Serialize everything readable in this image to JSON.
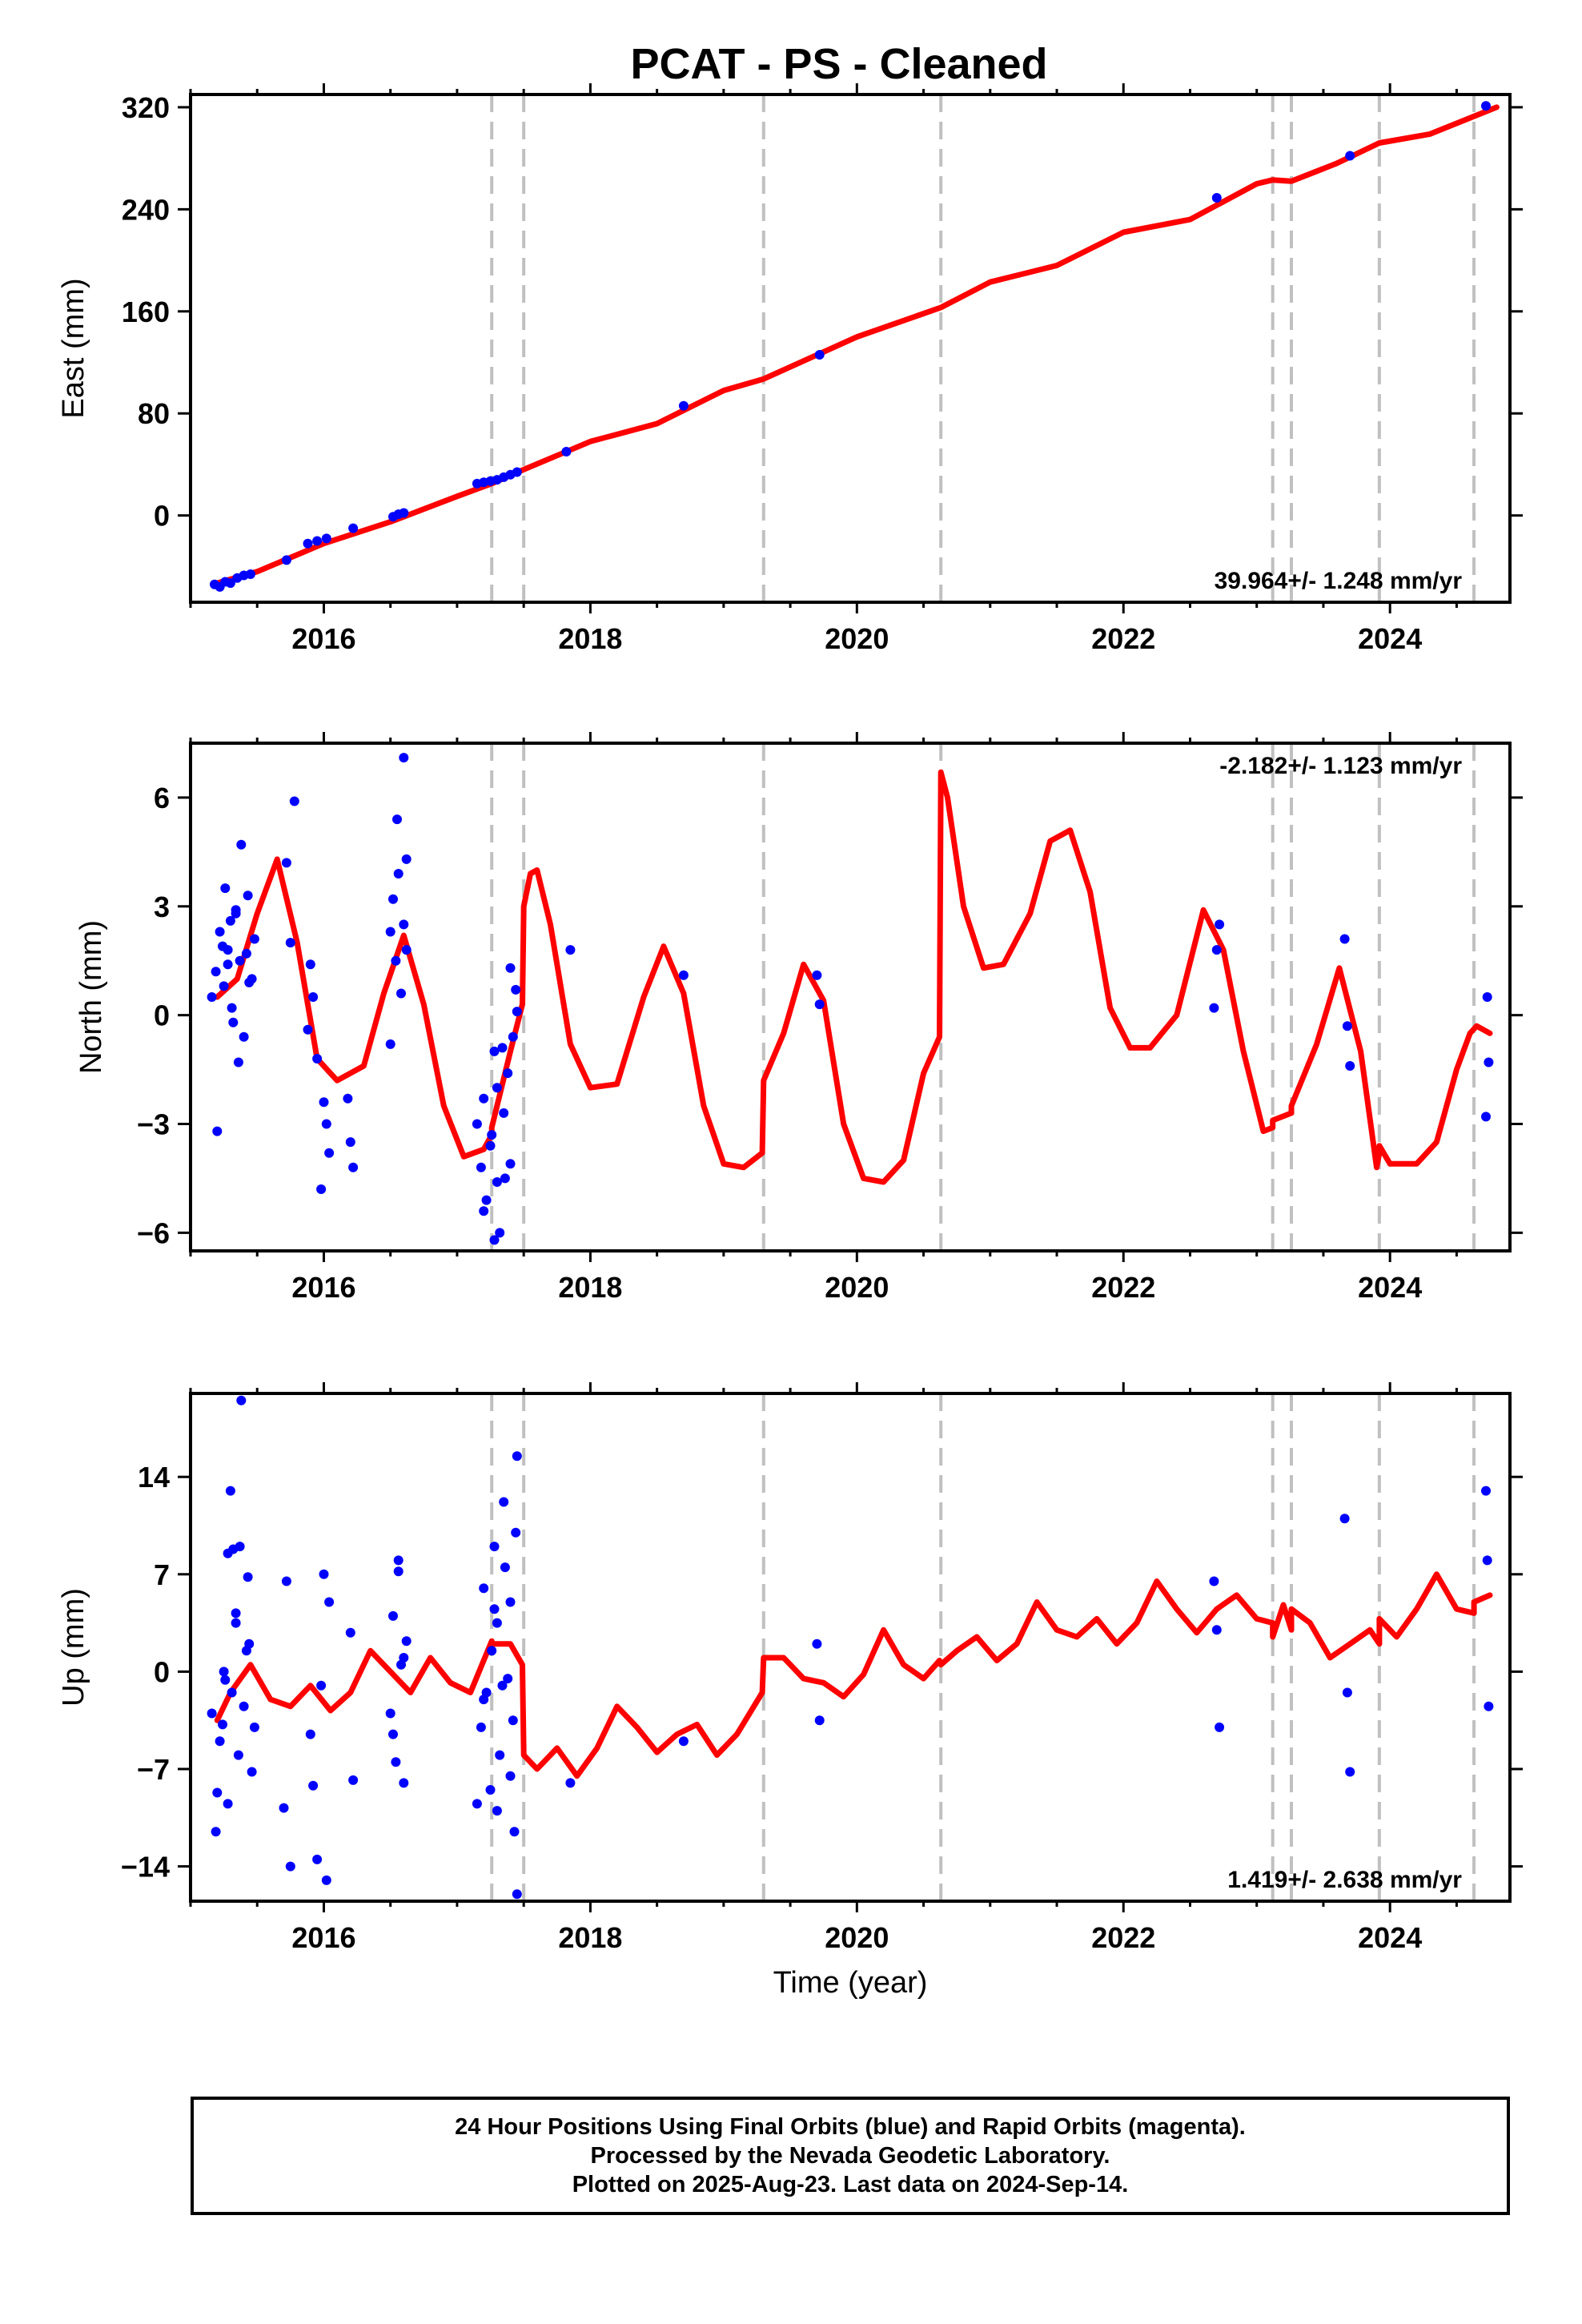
{
  "colors": {
    "final_orbits": "#0000ff",
    "model_fit": "#ff0000",
    "offsets": "#c0c0c0",
    "frame": "#000000"
  },
  "figure": {
    "title": "PCAT  - PS - Cleaned",
    "xlabel": "Time (year)",
    "caption": [
      "24 Hour Positions Using Final Orbits (blue) and Rapid Orbits (magenta).",
      "Processed by the Nevada Geodetic Laboratory.",
      "Plotted on 2025-Aug-23. Last data on 2024-Sep-14."
    ]
  },
  "chart_data": [
    {
      "type": "scatter",
      "ylabel": "East (mm)",
      "xlim": [
        2015.0,
        2024.9
      ],
      "ylim": [
        -68,
        330
      ],
      "x_ticks": [
        2016,
        2018,
        2020,
        2022,
        2024
      ],
      "y_ticks": [
        0,
        80,
        160,
        240,
        320
      ],
      "offset_years": [
        2017.26,
        2017.5,
        2019.3,
        2020.63,
        2023.12,
        2023.26,
        2023.92,
        2024.63
      ],
      "annotation": "39.964+/- 1.248 mm/yr",
      "annotation_position": "bottom-right",
      "series": [
        {
          "kind": "points",
          "x": [
            2015.18,
            2015.22,
            2015.26,
            2015.3,
            2015.35,
            2015.4,
            2015.45,
            2015.72,
            2015.88,
            2015.95,
            2016.02,
            2016.22,
            2016.52,
            2016.56,
            2016.6,
            2017.15,
            2017.2,
            2017.25,
            2017.3,
            2017.35,
            2017.4,
            2017.45,
            2017.82,
            2018.7,
            2019.72,
            2022.7,
            2023.7,
            2024.72
          ],
          "y": [
            -54,
            -56,
            -52,
            -53,
            -49,
            -47,
            -46,
            -35,
            -22,
            -20,
            -18,
            -10,
            -1,
            1,
            2,
            25,
            26,
            27,
            28,
            30,
            32,
            34,
            50,
            86,
            126,
            249,
            282,
            321
          ]
        },
        {
          "kind": "fit",
          "x": [
            2015.2,
            2015.5,
            2016.0,
            2016.5,
            2017.0,
            2017.26,
            2017.26,
            2017.5,
            2018.0,
            2018.5,
            2019.0,
            2019.3,
            2019.3,
            2020.0,
            2020.63,
            2020.63,
            2021.0,
            2021.5,
            2022.0,
            2022.5,
            2023.0,
            2023.12,
            2023.12,
            2023.26,
            2023.26,
            2023.6,
            2023.92,
            2023.92,
            2024.3,
            2024.8
          ],
          "y": [
            -53,
            -44,
            -22,
            -5,
            15,
            25,
            25,
            36,
            58,
            72,
            98,
            107,
            107,
            140,
            163,
            163,
            183,
            196,
            222,
            232,
            260,
            263,
            263,
            262,
            262,
            276,
            292,
            292,
            299,
            320
          ]
        }
      ]
    },
    {
      "type": "scatter",
      "ylabel": "North (mm)",
      "xlim": [
        2015.0,
        2024.9
      ],
      "ylim": [
        -6.5,
        7.5
      ],
      "x_ticks": [
        2016,
        2018,
        2020,
        2022,
        2024
      ],
      "y_ticks": [
        -6,
        -3,
        0,
        3,
        6
      ],
      "offset_years": [
        2017.26,
        2017.5,
        2019.3,
        2020.63,
        2023.12,
        2023.26,
        2023.92,
        2024.63
      ],
      "annotation": "-2.182+/- 1.123 mm/yr",
      "annotation_position": "top-right",
      "series": [
        {
          "kind": "points",
          "x": [
            2015.16,
            2015.19,
            2015.22,
            2015.25,
            2015.28,
            2015.31,
            2015.34,
            2015.37,
            2015.4,
            2015.43,
            2015.46,
            2015.2,
            2015.24,
            2015.3,
            2015.36,
            2015.42,
            2015.26,
            2015.32,
            2015.38,
            2015.44,
            2015.48,
            2015.28,
            2015.34,
            2015.75,
            2015.72,
            2015.78,
            2015.9,
            2015.92,
            2015.95,
            2015.98,
            2016.0,
            2016.02,
            2016.04,
            2015.88,
            2016.18,
            2016.2,
            2016.22,
            2016.5,
            2016.52,
            2016.54,
            2016.56,
            2016.58,
            2016.6,
            2016.62,
            2016.55,
            2016.6,
            2016.62,
            2016.5,
            2017.15,
            2017.18,
            2017.2,
            2017.22,
            2017.25,
            2017.28,
            2017.3,
            2017.32,
            2017.35,
            2017.38,
            2017.4,
            2017.42,
            2017.45,
            2017.2,
            2017.26,
            2017.3,
            2017.36,
            2017.4,
            2017.28,
            2017.34,
            2017.44,
            2017.85,
            2018.7,
            2019.7,
            2019.72,
            2022.68,
            2022.7,
            2022.72,
            2023.66,
            2023.68,
            2023.7,
            2024.72,
            2024.73,
            2024.74
          ],
          "y": [
            0.5,
            1.2,
            2.3,
            0.8,
            1.8,
            0.2,
            2.9,
            1.5,
            -0.6,
            3.3,
            1.0,
            -3.2,
            1.9,
            2.6,
            -1.3,
            1.7,
            3.5,
            -0.2,
            4.7,
            0.9,
            2.1,
            1.4,
            2.8,
            2.0,
            4.2,
            5.9,
            1.4,
            0.5,
            -1.2,
            -4.8,
            -2.4,
            -3.0,
            -3.8,
            -0.4,
            -2.3,
            -3.5,
            -4.2,
            2.3,
            3.2,
            1.5,
            3.9,
            0.6,
            2.5,
            1.8,
            5.4,
            7.1,
            4.3,
            -0.8,
            -3.0,
            -4.2,
            -2.3,
            -5.1,
            -3.6,
            -1.0,
            -4.6,
            -6.0,
            -2.7,
            -1.6,
            -4.1,
            -0.6,
            0.1,
            -5.4,
            -3.3,
            -2.0,
            -4.5,
            1.3,
            -6.2,
            -0.9,
            0.7,
            1.8,
            1.1,
            1.1,
            0.3,
            0.2,
            1.8,
            2.5,
            2.1,
            -0.3,
            -1.4,
            -2.8,
            0.5,
            -1.3
          ]
        },
        {
          "kind": "fit",
          "x": [
            2015.2,
            2015.35,
            2015.5,
            2015.65,
            2015.8,
            2015.95,
            2016.1,
            2016.3,
            2016.45,
            2016.6,
            2016.75,
            2016.9,
            2017.05,
            2017.2,
            2017.26,
            2017.26,
            2017.4,
            2017.49,
            2017.5,
            2017.55,
            2017.6,
            2017.7,
            2017.85,
            2018.0,
            2018.2,
            2018.4,
            2018.55,
            2018.7,
            2018.85,
            2019.0,
            2019.15,
            2019.29,
            2019.3,
            2019.45,
            2019.6,
            2019.75,
            2019.9,
            2020.05,
            2020.2,
            2020.35,
            2020.5,
            2020.62,
            2020.63,
            2020.68,
            2020.8,
            2020.95,
            2021.1,
            2021.3,
            2021.45,
            2021.6,
            2021.75,
            2021.9,
            2022.05,
            2022.2,
            2022.4,
            2022.6,
            2022.75,
            2022.9,
            2023.05,
            2023.12,
            2023.12,
            2023.26,
            2023.26,
            2023.45,
            2023.62,
            2023.78,
            2023.9,
            2023.92,
            2023.92,
            2024.0,
            2024.2,
            2024.35,
            2024.5,
            2024.6,
            2024.65,
            2024.75
          ],
          "y": [
            0.5,
            1.0,
            2.8,
            4.3,
            2.0,
            -1.2,
            -1.8,
            -1.4,
            0.6,
            2.2,
            0.3,
            -2.5,
            -3.9,
            -3.7,
            -3.3,
            -3.1,
            -1.0,
            0.3,
            3.0,
            3.9,
            4.0,
            2.5,
            -0.8,
            -2.0,
            -1.9,
            0.5,
            1.9,
            0.6,
            -2.5,
            -4.1,
            -4.2,
            -3.8,
            -1.8,
            -0.5,
            1.4,
            0.4,
            -3.0,
            -4.5,
            -4.6,
            -4.0,
            -1.6,
            -0.6,
            6.7,
            6.0,
            3.0,
            1.3,
            1.4,
            2.8,
            4.8,
            5.1,
            3.4,
            0.2,
            -0.9,
            -0.9,
            0.0,
            2.9,
            1.8,
            -1.0,
            -3.2,
            -3.1,
            -2.9,
            -2.7,
            -2.5,
            -0.8,
            1.3,
            -1.0,
            -4.2,
            -3.8,
            -3.6,
            -4.1,
            -4.1,
            -3.5,
            -1.5,
            -0.5,
            -0.3,
            -0.5
          ]
        }
      ]
    },
    {
      "type": "scatter",
      "ylabel": "Up (mm)",
      "xlim": [
        2015.0,
        2024.9
      ],
      "ylim": [
        -16.5,
        20
      ],
      "x_ticks": [
        2016,
        2018,
        2020,
        2022,
        2024
      ],
      "y_ticks": [
        -14,
        -7,
        0,
        7,
        14
      ],
      "offset_years": [
        2017.26,
        2017.5,
        2019.3,
        2020.63,
        2023.12,
        2023.26,
        2023.92,
        2024.63
      ],
      "annotation": "1.419+/- 2.638 mm/yr",
      "annotation_position": "bottom-right",
      "series": [
        {
          "kind": "points",
          "x": [
            2015.16,
            2015.19,
            2015.22,
            2015.25,
            2015.28,
            2015.31,
            2015.34,
            2015.37,
            2015.4,
            2015.43,
            2015.46,
            2015.2,
            2015.24,
            2015.3,
            2015.36,
            2015.42,
            2015.26,
            2015.32,
            2015.38,
            2015.44,
            2015.48,
            2015.28,
            2015.34,
            2015.7,
            2015.72,
            2015.75,
            2015.9,
            2015.92,
            2015.95,
            2015.98,
            2016.0,
            2016.02,
            2016.04,
            2016.2,
            2016.22,
            2016.5,
            2016.52,
            2016.54,
            2016.56,
            2016.58,
            2016.6,
            2016.62,
            2016.56,
            2016.6,
            2016.52,
            2017.15,
            2017.18,
            2017.2,
            2017.22,
            2017.25,
            2017.28,
            2017.3,
            2017.32,
            2017.35,
            2017.38,
            2017.4,
            2017.42,
            2017.45,
            2017.2,
            2017.26,
            2017.3,
            2017.36,
            2017.4,
            2017.28,
            2017.34,
            2017.44,
            2017.43,
            2017.45,
            2017.85,
            2018.7,
            2019.7,
            2019.72,
            2022.68,
            2022.7,
            2022.72,
            2023.66,
            2023.68,
            2023.7,
            2024.72,
            2024.73,
            2024.74
          ],
          "y": [
            -3.0,
            -11.5,
            -5.0,
            0.0,
            8.5,
            -1.5,
            4.2,
            9.0,
            -2.5,
            6.8,
            -7.2,
            -8.7,
            -3.8,
            13.0,
            -6.0,
            1.5,
            -0.6,
            8.8,
            19.5,
            2.0,
            -4.0,
            -9.5,
            3.5,
            -9.8,
            6.5,
            -14.0,
            -4.5,
            -8.2,
            -13.5,
            -1.0,
            7.0,
            -15.0,
            5.0,
            2.8,
            -7.8,
            -3.0,
            4.0,
            -6.5,
            7.2,
            0.5,
            -8.0,
            2.2,
            8.0,
            1.0,
            -4.5,
            -9.5,
            -4.0,
            6.0,
            -1.5,
            -8.5,
            9.0,
            3.5,
            -6.0,
            12.2,
            -0.5,
            5.0,
            -3.5,
            15.5,
            -2.0,
            1.5,
            -10.0,
            7.5,
            -7.5,
            4.5,
            -1.0,
            10.0,
            -11.5,
            -16.0,
            -8.0,
            -5.0,
            2.0,
            -3.5,
            6.5,
            3.0,
            -4.0,
            11.0,
            -1.5,
            -7.2,
            13.0,
            8.0,
            -2.5
          ]
        },
        {
          "kind": "fit",
          "x": [
            2015.2,
            2015.3,
            2015.45,
            2015.6,
            2015.75,
            2015.9,
            2016.05,
            2016.2,
            2016.35,
            2016.5,
            2016.65,
            2016.8,
            2016.95,
            2017.1,
            2017.26,
            2017.26,
            2017.4,
            2017.49,
            2017.5,
            2017.6,
            2017.75,
            2017.9,
            2018.05,
            2018.2,
            2018.35,
            2018.5,
            2018.65,
            2018.8,
            2018.95,
            2019.1,
            2019.29,
            2019.3,
            2019.45,
            2019.6,
            2019.75,
            2019.9,
            2020.05,
            2020.2,
            2020.35,
            2020.5,
            2020.62,
            2020.63,
            2020.75,
            2020.9,
            2021.05,
            2021.2,
            2021.35,
            2021.5,
            2021.65,
            2021.8,
            2021.95,
            2022.1,
            2022.25,
            2022.4,
            2022.55,
            2022.7,
            2022.85,
            2023.0,
            2023.12,
            2023.12,
            2023.2,
            2023.26,
            2023.26,
            2023.4,
            2023.55,
            2023.7,
            2023.85,
            2023.92,
            2023.92,
            2024.05,
            2024.2,
            2024.35,
            2024.5,
            2024.63,
            2024.63,
            2024.75
          ],
          "y": [
            -3.5,
            -1.5,
            0.5,
            -2.0,
            -2.5,
            -1.0,
            -2.8,
            -1.5,
            1.5,
            0.0,
            -1.5,
            1.0,
            -0.8,
            -1.5,
            2.2,
            2.0,
            2.0,
            0.5,
            -6.0,
            -7.0,
            -5.5,
            -7.5,
            -5.5,
            -2.5,
            -4.0,
            -5.8,
            -4.5,
            -3.8,
            -6.0,
            -4.5,
            -1.5,
            1.0,
            1.0,
            -0.5,
            -0.8,
            -1.8,
            -0.2,
            3.0,
            0.5,
            -0.5,
            0.8,
            0.5,
            1.5,
            2.5,
            0.8,
            2.0,
            5.0,
            3.0,
            2.5,
            3.8,
            2.0,
            3.5,
            6.5,
            4.5,
            2.8,
            4.5,
            5.5,
            3.8,
            3.5,
            2.5,
            4.8,
            3.0,
            4.5,
            3.5,
            1.0,
            2.0,
            3.0,
            2.0,
            3.8,
            2.5,
            4.5,
            7.0,
            4.5,
            4.2,
            5.0,
            5.5
          ]
        }
      ]
    }
  ]
}
